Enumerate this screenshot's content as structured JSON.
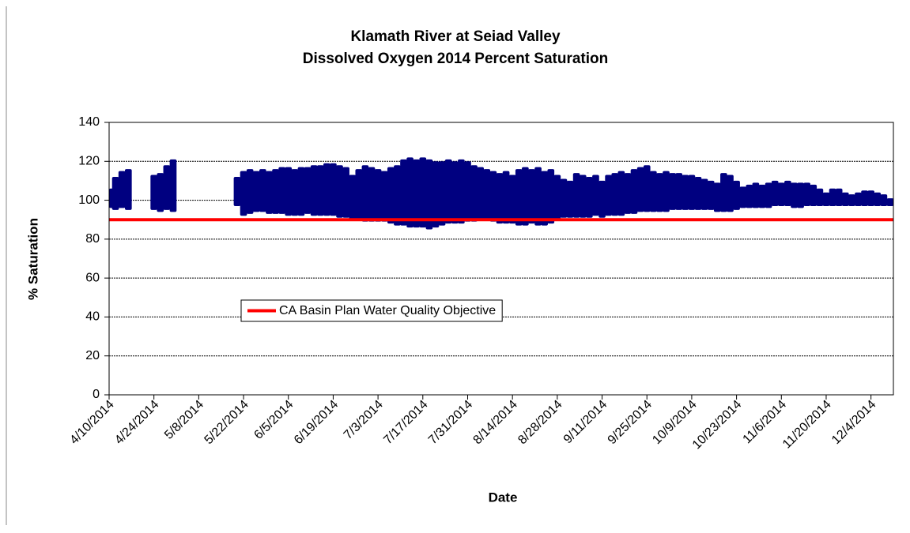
{
  "chart_data": {
    "type": "range",
    "title": "Klamath River at Seiad Valley",
    "subtitle": "Dissolved Oxygen 2014 Percent Saturation",
    "x_label": "Date",
    "y_label": "% Saturation",
    "color": "#000080",
    "x": [
      "4/10/2014",
      "4/12/2014",
      "4/14/2014",
      "4/16/2014",
      "4/18/2014",
      "4/20/2014",
      "4/22/2014",
      "4/24/2014",
      "4/26/2014",
      "4/28/2014",
      "4/30/2014",
      "5/2/2014",
      "5/4/2014",
      "5/6/2014",
      "5/8/2014",
      "5/10/2014",
      "5/12/2014",
      "5/14/2014",
      "5/16/2014",
      "5/18/2014",
      "5/20/2014",
      "5/22/2014",
      "5/24/2014",
      "5/26/2014",
      "5/28/2014",
      "5/30/2014",
      "6/1/2014",
      "6/3/2014",
      "6/5/2014",
      "6/7/2014",
      "6/9/2014",
      "6/11/2014",
      "6/13/2014",
      "6/15/2014",
      "6/17/2014",
      "6/19/2014",
      "6/21/2014",
      "6/23/2014",
      "6/25/2014",
      "6/27/2014",
      "6/29/2014",
      "7/1/2014",
      "7/3/2014",
      "7/5/2014",
      "7/7/2014",
      "7/9/2014",
      "7/11/2014",
      "7/13/2014",
      "7/15/2014",
      "7/17/2014",
      "7/19/2014",
      "7/21/2014",
      "7/23/2014",
      "7/25/2014",
      "7/27/2014",
      "7/29/2014",
      "7/31/2014",
      "8/2/2014",
      "8/4/2014",
      "8/6/2014",
      "8/8/2014",
      "8/10/2014",
      "8/12/2014",
      "8/14/2014",
      "8/16/2014",
      "8/18/2014",
      "8/20/2014",
      "8/22/2014",
      "8/24/2014",
      "8/26/2014",
      "8/28/2014",
      "8/30/2014",
      "9/1/2014",
      "9/3/2014",
      "9/5/2014",
      "9/7/2014",
      "9/9/2014",
      "9/11/2014",
      "9/13/2014",
      "9/15/2014",
      "9/17/2014",
      "9/19/2014",
      "9/21/2014",
      "9/23/2014",
      "9/25/2014",
      "9/27/2014",
      "9/29/2014",
      "10/1/2014",
      "10/3/2014",
      "10/5/2014",
      "10/7/2014",
      "10/9/2014",
      "10/11/2014",
      "10/13/2014",
      "10/15/2014",
      "10/17/2014",
      "10/19/2014",
      "10/21/2014",
      "10/23/2014",
      "10/25/2014",
      "10/27/2014",
      "10/29/2014",
      "10/31/2014",
      "11/2/2014",
      "11/4/2014",
      "11/6/2014",
      "11/8/2014",
      "11/10/2014",
      "11/12/2014",
      "11/14/2014",
      "11/16/2014",
      "11/18/2014",
      "11/20/2014",
      "11/22/2014",
      "11/24/2014",
      "11/26/2014",
      "11/28/2014",
      "11/30/2014",
      "12/2/2014",
      "12/4/2014",
      "12/6/2014",
      "12/8/2014",
      "12/10/2014"
    ],
    "low": [
      96,
      95,
      96,
      95,
      null,
      null,
      null,
      95,
      94,
      95,
      94,
      null,
      null,
      null,
      null,
      null,
      null,
      null,
      null,
      null,
      97,
      92,
      93,
      94,
      94,
      93,
      93,
      93,
      92,
      92,
      92,
      93,
      92,
      92,
      92,
      92,
      91,
      91,
      90,
      90,
      89,
      89,
      89,
      89,
      88,
      87,
      87,
      86,
      86,
      86,
      85,
      86,
      87,
      88,
      88,
      88,
      89,
      89,
      90,
      90,
      89,
      88,
      88,
      88,
      87,
      87,
      88,
      87,
      87,
      88,
      90,
      91,
      91,
      91,
      91,
      91,
      92,
      91,
      92,
      92,
      92,
      93,
      93,
      94,
      94,
      94,
      94,
      94,
      95,
      95,
      95,
      95,
      95,
      95,
      95,
      94,
      94,
      94,
      95,
      96,
      96,
      96,
      96,
      96,
      97,
      97,
      97,
      96,
      96,
      97,
      97,
      97,
      97,
      97,
      97,
      97,
      97,
      97,
      97,
      97,
      97,
      97,
      97
    ],
    "high": [
      106,
      112,
      115,
      116,
      null,
      null,
      null,
      113,
      114,
      118,
      121,
      null,
      null,
      null,
      null,
      null,
      null,
      null,
      null,
      null,
      112,
      115,
      116,
      115,
      116,
      115,
      116,
      117,
      117,
      116,
      117,
      117,
      118,
      118,
      119,
      119,
      118,
      117,
      113,
      116,
      118,
      117,
      116,
      115,
      117,
      118,
      121,
      122,
      121,
      122,
      121,
      120,
      120,
      121,
      120,
      121,
      120,
      118,
      117,
      116,
      115,
      114,
      115,
      113,
      116,
      117,
      116,
      117,
      115,
      116,
      113,
      111,
      110,
      114,
      113,
      112,
      113,
      110,
      113,
      114,
      115,
      114,
      116,
      117,
      118,
      115,
      114,
      115,
      114,
      114,
      113,
      113,
      112,
      111,
      110,
      109,
      114,
      113,
      110,
      107,
      108,
      109,
      108,
      109,
      110,
      109,
      110,
      109,
      109,
      109,
      108,
      106,
      104,
      106,
      106,
      104,
      103,
      104,
      105,
      105,
      104,
      103,
      101
    ],
    "xlim": [
      "4/10/2014",
      "12/11/2014"
    ],
    "xticks": [
      "4/10/2014",
      "4/24/2014",
      "5/8/2014",
      "5/22/2014",
      "6/5/2014",
      "6/19/2014",
      "7/3/2014",
      "7/17/2014",
      "7/31/2014",
      "8/14/2014",
      "8/28/2014",
      "9/11/2014",
      "9/25/2014",
      "10/9/2014",
      "10/23/2014",
      "11/6/2014",
      "11/20/2014",
      "12/4/2014"
    ],
    "ylim": [
      0,
      140
    ],
    "yticks": [
      0,
      20,
      40,
      60,
      80,
      100,
      120,
      140
    ],
    "grid": true,
    "reference_line": {
      "name": "CA Basin Plan Water Quality Objective",
      "value": 90,
      "color": "#ff0000"
    },
    "legend": "center-left"
  }
}
